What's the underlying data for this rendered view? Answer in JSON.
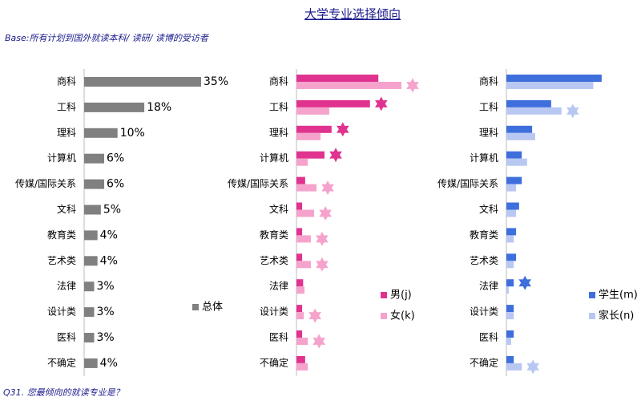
{
  "header": {
    "title": "大学专业选择倾向",
    "subtitle": "Base:所有计划到国外就读本科/ 读研/ 读博的受访者"
  },
  "footer": "Q31. 您最倾向的就读专业是？",
  "chart_data": [
    {
      "type": "hbar",
      "categories": [
        "商科",
        "工科",
        "理科",
        "计算机",
        "传媒/国际关系",
        "文科",
        "教育类",
        "艺术类",
        "法律",
        "设计类",
        "医科",
        "不确定"
      ],
      "xlim": [
        0,
        35
      ],
      "series": [
        {
          "name": "总体",
          "color": "#808080",
          "values": [
            35,
            18,
            10,
            6,
            6,
            5,
            4,
            4,
            3,
            3,
            3,
            4
          ],
          "value_labels": [
            "35%",
            "18%",
            "10%",
            "6%",
            "6%",
            "5%",
            "4%",
            "4%",
            "3%",
            "3%",
            "3%",
            "4%"
          ]
        }
      ]
    },
    {
      "type": "hbar",
      "categories": [
        "商科",
        "工科",
        "理科",
        "计算机",
        "传媒/国际关系",
        "文科",
        "教育类",
        "艺术类",
        "法律",
        "设计类",
        "医科",
        "不确定"
      ],
      "xlim": [
        0,
        35
      ],
      "series": [
        {
          "name": "男(j)",
          "color": "#e0338f",
          "values": [
            24.5,
            22,
            10.5,
            8.4,
            2.6,
            1.7,
            1.7,
            1.7,
            2,
            1.7,
            1.7,
            2.6
          ],
          "stars": [
            false,
            true,
            true,
            true,
            false,
            false,
            false,
            false,
            false,
            false,
            false,
            false
          ]
        },
        {
          "name": "女(k)",
          "color": "#f5a3cc",
          "values": [
            31.4,
            9.8,
            7.2,
            3.4,
            6,
            5.3,
            4.3,
            4.3,
            2.4,
            2.2,
            3.4,
            3.4
          ],
          "stars": [
            true,
            false,
            false,
            false,
            true,
            true,
            true,
            true,
            false,
            true,
            true,
            false
          ]
        }
      ]
    },
    {
      "type": "hbar",
      "categories": [
        "商科",
        "工科",
        "理科",
        "计算机",
        "传媒/国际关系",
        "文科",
        "教育类",
        "艺术类",
        "法律",
        "设计类",
        "医科",
        "不确定"
      ],
      "xlim": [
        0,
        35
      ],
      "series": [
        {
          "name": "学生(m)",
          "color": "#3e6fdc",
          "values": [
            28.5,
            13.4,
            7.7,
            4.6,
            4.6,
            3.8,
            2.9,
            2.9,
            2.2,
            2.2,
            2.2,
            2.2
          ],
          "stars": [
            false,
            false,
            false,
            false,
            false,
            false,
            false,
            false,
            true,
            false,
            false,
            false
          ]
        },
        {
          "name": "家长(n)",
          "color": "#b8c8f2",
          "values": [
            26,
            16.5,
            8.6,
            6.2,
            2.9,
            2.9,
            2.2,
            2.2,
            0.7,
            2.2,
            1.4,
            4.6
          ],
          "stars": [
            false,
            true,
            false,
            false,
            false,
            false,
            false,
            false,
            false,
            false,
            false,
            true
          ]
        }
      ]
    }
  ]
}
